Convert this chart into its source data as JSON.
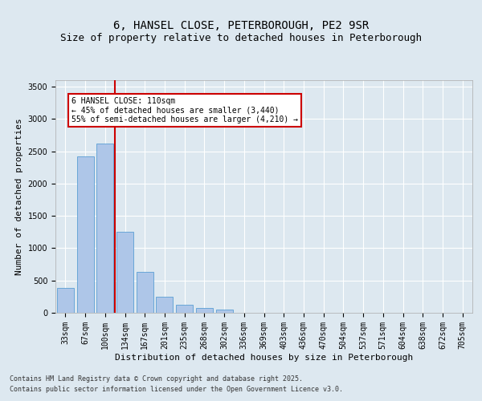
{
  "title_line1": "6, HANSEL CLOSE, PETERBOROUGH, PE2 9SR",
  "title_line2": "Size of property relative to detached houses in Peterborough",
  "xlabel": "Distribution of detached houses by size in Peterborough",
  "ylabel": "Number of detached properties",
  "categories": [
    "33sqm",
    "67sqm",
    "100sqm",
    "134sqm",
    "167sqm",
    "201sqm",
    "235sqm",
    "268sqm",
    "302sqm",
    "336sqm",
    "369sqm",
    "403sqm",
    "436sqm",
    "470sqm",
    "504sqm",
    "537sqm",
    "571sqm",
    "604sqm",
    "638sqm",
    "672sqm",
    "705sqm"
  ],
  "values": [
    390,
    2420,
    2620,
    1250,
    630,
    250,
    120,
    70,
    50,
    0,
    0,
    0,
    0,
    0,
    0,
    0,
    0,
    0,
    0,
    0,
    0
  ],
  "bar_color": "#aec6e8",
  "bar_edge_color": "#5a9fd4",
  "red_line_index": 2,
  "annotation_text": "6 HANSEL CLOSE: 110sqm\n← 45% of detached houses are smaller (3,440)\n55% of semi-detached houses are larger (4,210) →",
  "annotation_box_color": "#ffffff",
  "annotation_box_edge": "#cc0000",
  "vline_color": "#cc0000",
  "ylim": [
    0,
    3600
  ],
  "yticks": [
    0,
    500,
    1000,
    1500,
    2000,
    2500,
    3000,
    3500
  ],
  "background_color": "#dde8f0",
  "plot_bg_color": "#dde8f0",
  "footer_line1": "Contains HM Land Registry data © Crown copyright and database right 2025.",
  "footer_line2": "Contains public sector information licensed under the Open Government Licence v3.0.",
  "grid_color": "#ffffff",
  "title_fontsize": 10,
  "subtitle_fontsize": 9,
  "tick_fontsize": 7,
  "label_fontsize": 8
}
